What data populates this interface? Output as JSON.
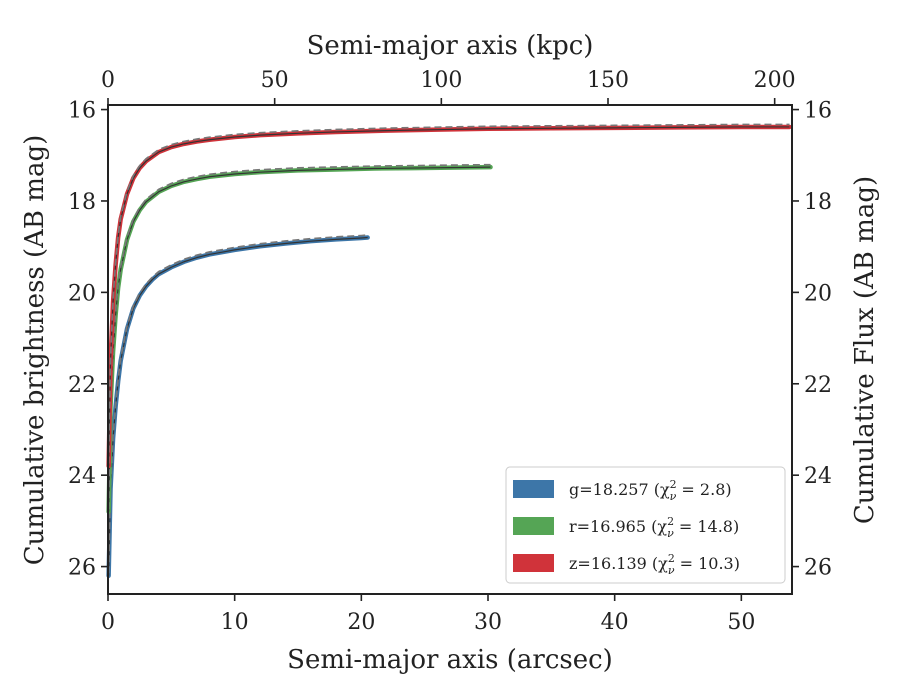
{
  "chart_data": {
    "type": "line",
    "title": "",
    "xlabel_bottom": "Semi-major axis (arcsec)",
    "xlabel_top": "Semi-major axis (kpc)",
    "ylabel_left": "Cumulative brightness (AB mag)",
    "ylabel_right": "Cumulative Flux (AB mag)",
    "xlim": [
      0,
      54
    ],
    "ylim": [
      26.6,
      15.9
    ],
    "y_inverted": true,
    "xticks_bottom": [
      0,
      10,
      20,
      30,
      40,
      50
    ],
    "xticks_top_values": [
      0,
      50,
      100,
      150,
      200
    ],
    "top_axis_kpc_per_arcsec": 3.8,
    "yticks": [
      16,
      18,
      20,
      22,
      24,
      26
    ],
    "grid": false,
    "legend_position": "lower-right",
    "legend": [
      {
        "label": "g=18.257",
        "chi": "(χ",
        "chi_sub": "ν",
        "chi_sup": "2",
        "chi_val": " = 2.8)",
        "color": "#3d76a8"
      },
      {
        "label": "r=16.965",
        "chi": "(χ",
        "chi_sub": "ν",
        "chi_sup": "2",
        "chi_val": " = 14.8)",
        "color": "#55a555"
      },
      {
        "label": "z=16.139",
        "chi": "(χ",
        "chi_sub": "ν",
        "chi_sup": "2",
        "chi_val": " = 10.3)",
        "color": "#d0333a"
      }
    ],
    "series": [
      {
        "name": "g",
        "color": "#3d76a8",
        "x": [
          0.05,
          0.2,
          0.4,
          0.6,
          0.8,
          1,
          1.5,
          2,
          2.5,
          3,
          3.5,
          4,
          5,
          6,
          7,
          8,
          9,
          10,
          12,
          14,
          16,
          18,
          20,
          20.5
        ],
        "y": [
          26.2,
          24.3,
          23.2,
          22.5,
          21.95,
          21.5,
          20.8,
          20.35,
          20.07,
          19.87,
          19.72,
          19.6,
          19.45,
          19.33,
          19.24,
          19.17,
          19.12,
          19.07,
          18.99,
          18.93,
          18.88,
          18.84,
          18.81,
          18.8
        ]
      },
      {
        "name": "r",
        "color": "#55a555",
        "x": [
          0.05,
          0.2,
          0.4,
          0.6,
          0.8,
          1,
          1.5,
          2,
          2.5,
          3,
          4,
          5,
          6,
          7,
          8,
          10,
          12,
          15,
          18,
          21,
          24,
          27,
          30.2
        ],
        "y": [
          24.8,
          22.5,
          21.3,
          20.5,
          19.9,
          19.5,
          18.85,
          18.45,
          18.2,
          18.02,
          17.8,
          17.67,
          17.58,
          17.52,
          17.47,
          17.41,
          17.37,
          17.33,
          17.31,
          17.29,
          17.28,
          17.27,
          17.26
        ]
      },
      {
        "name": "z",
        "color": "#d0333a",
        "x": [
          0.05,
          0.2,
          0.4,
          0.6,
          0.8,
          1,
          1.5,
          2,
          2.5,
          3,
          4,
          5,
          6,
          7,
          8,
          10,
          12,
          15,
          18,
          22,
          26,
          30,
          35,
          40,
          45,
          50,
          53.8
        ],
        "y": [
          23.8,
          21.5,
          20.2,
          19.4,
          18.8,
          18.4,
          17.85,
          17.5,
          17.28,
          17.13,
          16.93,
          16.82,
          16.75,
          16.7,
          16.66,
          16.6,
          16.56,
          16.52,
          16.49,
          16.46,
          16.44,
          16.42,
          16.41,
          16.4,
          16.39,
          16.38,
          16.38
        ]
      }
    ]
  }
}
